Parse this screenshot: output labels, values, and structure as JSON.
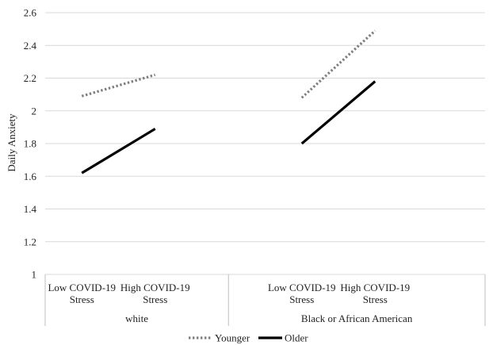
{
  "chart_data": {
    "type": "line",
    "title": "",
    "xlabel": "",
    "ylabel": "Daily Anxiety",
    "ylim": [
      1,
      2.6
    ],
    "yticks": [
      "1",
      "1.2",
      "1.4",
      "1.6",
      "1.8",
      "2",
      "2.2",
      "2.4",
      "2.6"
    ],
    "grid": true,
    "legend_position": "bottom",
    "groups": [
      {
        "label": "white",
        "categories": [
          [
            "Low COVID-19",
            "Stress"
          ],
          [
            "High COVID-19",
            "Stress"
          ]
        ]
      },
      {
        "label": "Black or African American",
        "categories": [
          [
            "Low COVID-19",
            "Stress"
          ],
          [
            "High COVID-19",
            "Stress"
          ]
        ]
      }
    ],
    "series": [
      {
        "name": "Younger",
        "style": "dotted",
        "color": "#7f7f7f",
        "segments": [
          {
            "group": 0,
            "values": [
              2.09,
              2.22
            ]
          },
          {
            "group": 1,
            "values": [
              2.08,
              2.49
            ]
          }
        ]
      },
      {
        "name": "Older",
        "style": "solid",
        "color": "#000000",
        "segments": [
          {
            "group": 0,
            "values": [
              1.62,
              1.89
            ]
          },
          {
            "group": 1,
            "values": [
              1.8,
              2.18
            ]
          }
        ]
      }
    ]
  }
}
